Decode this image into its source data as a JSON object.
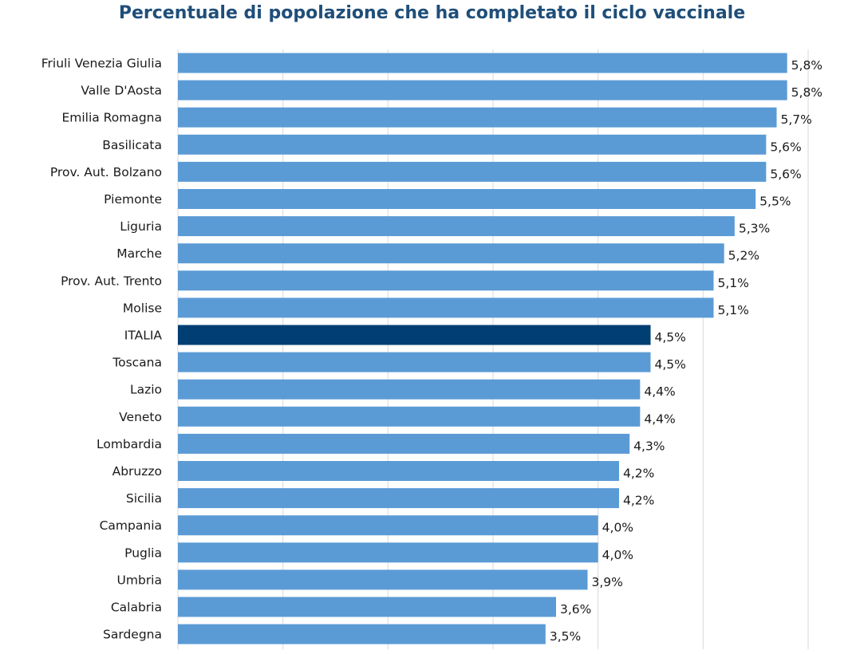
{
  "chart_data": {
    "type": "bar",
    "orientation": "horizontal",
    "title": "Percentuale di popolazione che ha completato il ciclo vaccinale",
    "xlabel": "",
    "ylabel": "",
    "categories": [
      "Friuli Venezia Giulia",
      "Valle D'Aosta",
      "Emilia Romagna",
      "Basilicata",
      "Prov. Aut. Bolzano",
      "Piemonte",
      "Liguria",
      "Marche",
      "Prov. Aut. Trento",
      "Molise",
      "ITALIA",
      "Toscana",
      "Lazio",
      "Veneto",
      "Lombardia",
      "Abruzzo",
      "Sicilia",
      "Campania",
      "Puglia",
      "Umbria",
      "Calabria",
      "Sardegna"
    ],
    "values": [
      5.8,
      5.8,
      5.7,
      5.6,
      5.6,
      5.5,
      5.3,
      5.2,
      5.1,
      5.1,
      4.5,
      4.5,
      4.4,
      4.4,
      4.3,
      4.2,
      4.2,
      4.0,
      4.0,
      3.9,
      3.6,
      3.5
    ],
    "value_labels": [
      "5,8%",
      "5,8%",
      "5,7%",
      "5,6%",
      "5,6%",
      "5,5%",
      "5,3%",
      "5,2%",
      "5,1%",
      "5,1%",
      "4,5%",
      "4,5%",
      "4,4%",
      "4,4%",
      "4,3%",
      "4,2%",
      "4,2%",
      "4,0%",
      "4,0%",
      "3,9%",
      "3,6%",
      "3,5%"
    ],
    "xlim": [
      0,
      6
    ],
    "grid": true,
    "legend": "none",
    "colors": {
      "bar": "#5b9bd5",
      "highlight": "#003e73",
      "title": "#1f4e79",
      "grid": "#d9d9d9"
    },
    "highlight_category": "ITALIA"
  }
}
